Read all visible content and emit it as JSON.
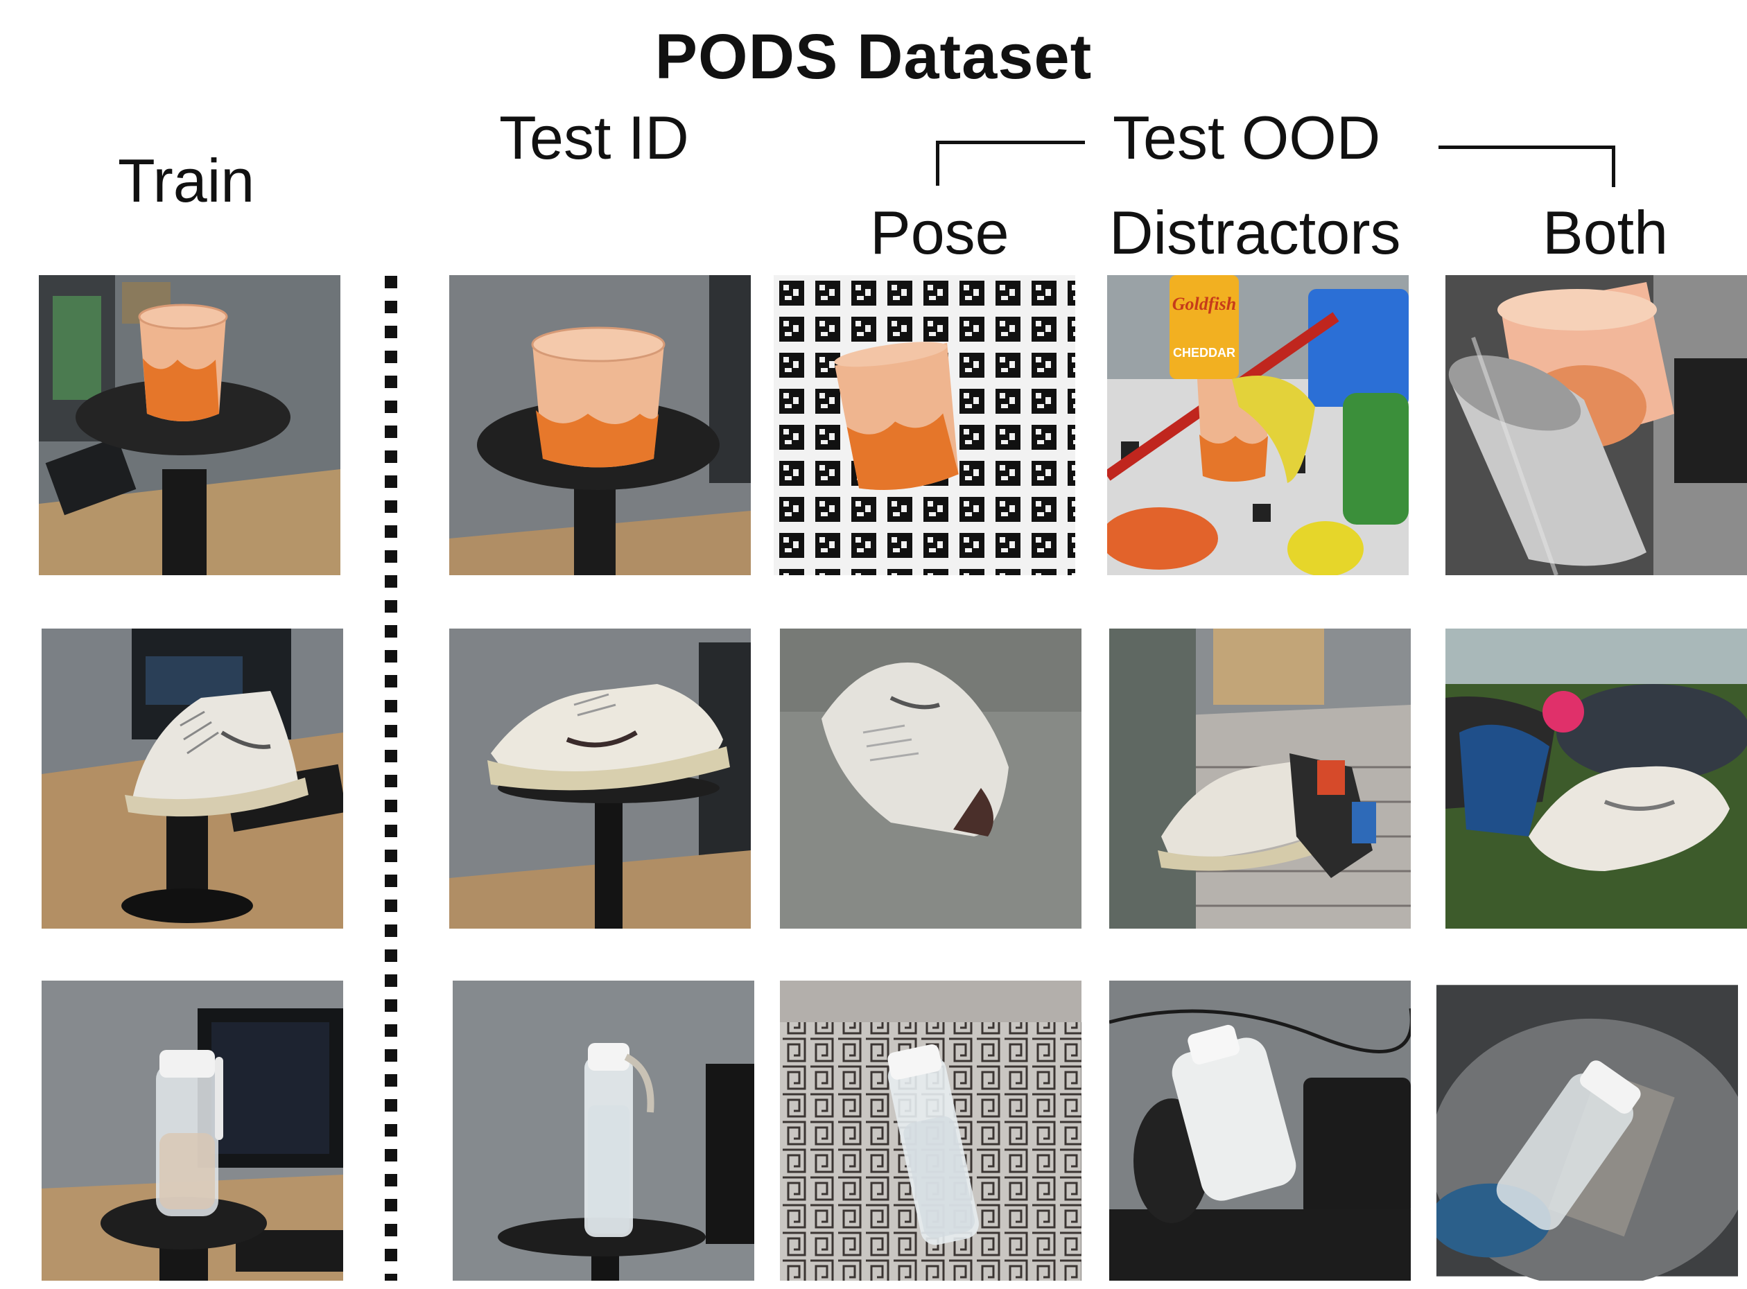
{
  "figure": {
    "title": "PODS Dataset",
    "headers": {
      "train": "Train",
      "test_id": "Test ID",
      "test_ood": "Test OOD",
      "pose": "Pose",
      "distractors": "Distractors",
      "both": "Both"
    },
    "packaging_text": {
      "snack_bag_brand": "Goldfish",
      "snack_bag_flavor": "CHEDDAR"
    }
  }
}
